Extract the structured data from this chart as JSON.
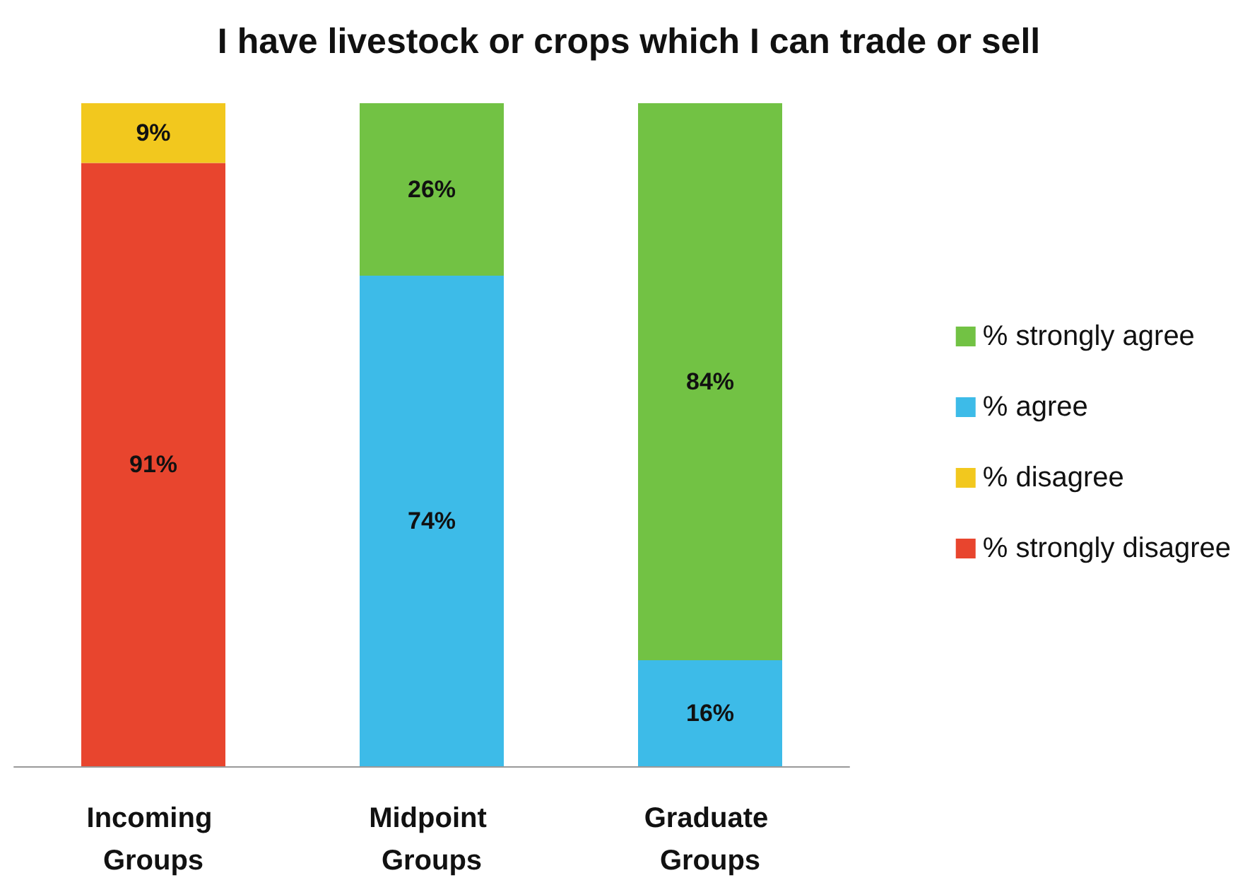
{
  "chart_data": {
    "type": "bar",
    "title": "I have livestock or crops which I can trade or sell",
    "categories": [
      "Incoming Groups",
      "Midpoint Groups",
      "Graduate Groups"
    ],
    "stacked": true,
    "tick_labels": "x",
    "legend": "right",
    "series": [
      {
        "name": "% strongly disagree",
        "color": "#e8452e",
        "values": [
          91,
          null,
          null
        ],
        "value_labels": [
          "91%",
          null,
          null
        ]
      },
      {
        "name": "% disagree",
        "color": "#f2c81e",
        "values": [
          9,
          null,
          null
        ],
        "value_labels": [
          "9%",
          null,
          null
        ]
      },
      {
        "name": "% agree",
        "color": "#3dbbe8",
        "values": [
          null,
          74,
          16
        ],
        "value_labels": [
          null,
          "74%",
          "16%"
        ]
      },
      {
        "name": "% strongly agree",
        "color": "#72c244",
        "values": [
          null,
          26,
          84
        ],
        "value_labels": [
          null,
          "26%",
          "84%"
        ]
      }
    ]
  }
}
